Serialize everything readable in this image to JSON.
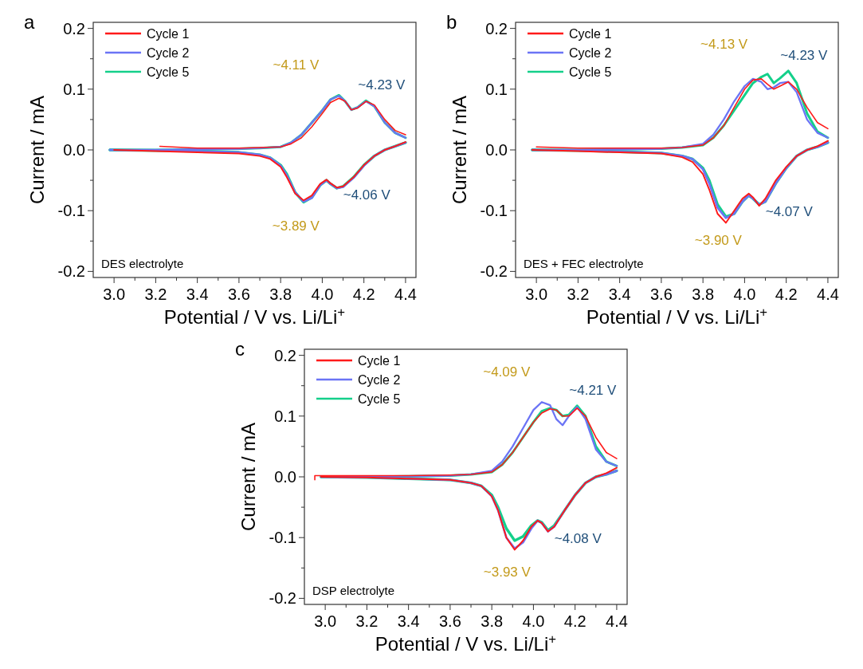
{
  "chart_data": [
    {
      "type": "line",
      "title": "a",
      "xlabel": "Potential / V vs. Li/Li$^{+}$",
      "ylabel": "Current / mA",
      "legend": "top left",
      "line_style": "solid",
      "xlim": [
        2.9,
        4.45
      ],
      "ylim": [
        -0.21,
        0.21
      ],
      "xticks": [
        {
          "value": 3.0,
          "label": "3.0"
        },
        {
          "value": 3.1,
          "label": null
        },
        3.2,
        {
          "value": 3.3,
          "label": null
        },
        3.4,
        {
          "value": 3.5,
          "label": null
        },
        3.6,
        {
          "value": 3.7,
          "label": null
        },
        3.8,
        {
          "value": 3.9,
          "label": null
        },
        {
          "value": 4.0,
          "label": "4.0"
        },
        {
          "value": 4.1,
          "label": null
        },
        4.2,
        {
          "value": 4.3,
          "label": null
        },
        4.4
      ],
      "yticks": [
        -0.2,
        {
          "value": -0.15,
          "label": null
        },
        -0.1,
        {
          "value": -0.05,
          "label": null
        },
        {
          "value": 0,
          "label": "0.0"
        },
        {
          "value": 0.05,
          "label": null
        },
        0.1,
        {
          "value": 0.15,
          "label": null
        },
        0.2
      ],
      "annotations": [
        {
          "text": "~4.11 V",
          "x": 4.08,
          "y": 0.09
        },
        {
          "text": "~4.23 V",
          "x": 4.21,
          "y": 0.081
        },
        {
          "text": "~3.89 V",
          "x": 3.91,
          "y": -0.086
        },
        {
          "text": "~4.06 V",
          "x": 4.07,
          "y": -0.063
        },
        "DES electrolyte"
      ],
      "series": [
        {
          "name": "Cycle 1",
          "color": "#ff1a1a",
          "x": [
            3.22,
            3.4,
            3.6,
            3.7,
            3.8,
            3.85,
            3.9,
            3.95,
            4.0,
            4.04,
            4.08,
            4.11,
            4.14,
            4.17,
            4.21,
            4.25,
            4.3,
            4.35,
            4.4
          ],
          "values": [
            0.006,
            0.003,
            0.003,
            0.004,
            0.005,
            0.01,
            0.02,
            0.038,
            0.06,
            0.078,
            0.085,
            0.08,
            0.066,
            0.069,
            0.08,
            0.074,
            0.05,
            0.032,
            0.025
          ]
        },
        {
          "color": "#ff1a1a",
          "x": [
            4.4,
            4.35,
            4.3,
            4.25,
            4.2,
            4.15,
            4.1,
            4.07,
            4.04,
            4.02,
            3.99,
            3.95,
            3.91,
            3.87,
            3.83,
            3.8,
            3.75,
            3.7,
            3.6,
            3.4,
            3.2,
            3.0
          ],
          "values": [
            0.013,
            0.006,
            0,
            -0.01,
            -0.025,
            -0.045,
            -0.06,
            -0.062,
            -0.055,
            -0.049,
            -0.056,
            -0.075,
            -0.083,
            -0.072,
            -0.045,
            -0.028,
            -0.015,
            -0.01,
            -0.006,
            -0.004,
            -0.002,
            0
          ]
        },
        {
          "name": "Cycle 2",
          "color": "#6b74f5",
          "x": [
            2.98,
            3.2,
            3.4,
            3.6,
            3.7,
            3.8,
            3.85,
            3.9,
            3.95,
            4.0,
            4.04,
            4.08,
            4.11,
            4.14,
            4.17,
            4.21,
            4.25,
            4.3,
            4.35,
            4.4
          ],
          "values": [
            0,
            0,
            0.001,
            0.002,
            0.003,
            0.005,
            0.012,
            0.025,
            0.045,
            0.065,
            0.083,
            0.089,
            0.08,
            0.066,
            0.07,
            0.08,
            0.072,
            0.045,
            0.028,
            0.02
          ]
        },
        {
          "color": "#6b74f5",
          "x": [
            4.4,
            4.35,
            4.3,
            4.25,
            4.2,
            4.15,
            4.1,
            4.07,
            4.04,
            4.02,
            3.99,
            3.95,
            3.91,
            3.87,
            3.83,
            3.8,
            3.75,
            3.7,
            3.6,
            3.4,
            3.2,
            2.98
          ],
          "values": [
            0.012,
            0.006,
            0,
            -0.01,
            -0.026,
            -0.046,
            -0.061,
            -0.063,
            -0.056,
            -0.05,
            -0.058,
            -0.079,
            -0.085,
            -0.07,
            -0.042,
            -0.026,
            -0.013,
            -0.008,
            -0.004,
            -0.002,
            -0.001,
            0
          ]
        },
        {
          "name": "Cycle 5",
          "color": "#14d08a",
          "x": [
            2.98,
            3.2,
            3.4,
            3.6,
            3.7,
            3.8,
            3.85,
            3.9,
            3.95,
            4.0,
            4.04,
            4.08,
            4.11,
            4.14,
            4.17,
            4.21,
            4.25,
            4.3,
            4.35,
            4.4
          ],
          "values": [
            0,
            0,
            0.001,
            0.002,
            0.003,
            0.005,
            0.012,
            0.025,
            0.045,
            0.065,
            0.083,
            0.09,
            0.08,
            0.066,
            0.07,
            0.081,
            0.072,
            0.045,
            0.028,
            0.02
          ]
        },
        {
          "color": "#14d08a",
          "x": [
            4.4,
            4.35,
            4.3,
            4.25,
            4.2,
            4.15,
            4.1,
            4.07,
            4.04,
            4.02,
            3.99,
            3.95,
            3.91,
            3.87,
            3.83,
            3.8,
            3.75,
            3.7,
            3.6,
            3.4,
            3.2,
            2.98
          ],
          "values": [
            0.012,
            0.006,
            0,
            -0.01,
            -0.025,
            -0.045,
            -0.06,
            -0.063,
            -0.056,
            -0.05,
            -0.058,
            -0.078,
            -0.086,
            -0.07,
            -0.04,
            -0.025,
            -0.013,
            -0.008,
            -0.004,
            -0.002,
            -0.001,
            0
          ]
        }
      ]
    },
    {
      "type": "line",
      "title": "b",
      "xlabel": "Potential / V vs. Li/Li$^{+}$",
      "ylabel": "Current / mA",
      "legend": "top left",
      "line_style": "solid",
      "xlim": [
        2.9,
        4.45
      ],
      "ylim": [
        -0.21,
        0.21
      ],
      "xticks": [
        {
          "value": 3.0,
          "label": "3.0"
        },
        {
          "value": 3.1,
          "label": null
        },
        3.2,
        {
          "value": 3.3,
          "label": null
        },
        3.4,
        {
          "value": 3.5,
          "label": null
        },
        3.6,
        {
          "value": 3.7,
          "label": null
        },
        3.8,
        {
          "value": 3.9,
          "label": null
        },
        {
          "value": 4.0,
          "label": "4.0"
        },
        {
          "value": 4.1,
          "label": null
        },
        4.2,
        {
          "value": 4.3,
          "label": null
        },
        4.4
      ],
      "yticks": [
        -0.2,
        {
          "value": -0.15,
          "label": null
        },
        -0.1,
        {
          "value": -0.05,
          "label": null
        },
        {
          "value": 0,
          "label": "0.0"
        },
        {
          "value": 0.05,
          "label": null
        },
        0.1,
        {
          "value": 0.15,
          "label": null
        },
        0.2
      ],
      "annotations": [
        {
          "text": "~4.13 V",
          "x": 4.11,
          "y": 0.125
        },
        {
          "text": "~4.23 V",
          "x": 4.21,
          "y": 0.13
        },
        {
          "text": "~3.90 V",
          "x": 3.91,
          "y": -0.11
        },
        {
          "text": "~4.07 V",
          "x": 4.07,
          "y": -0.09
        },
        "DES + FEC electrolyte"
      ],
      "series": [
        {
          "name": "Cycle 1",
          "color": "#ff1a1a",
          "x": [
            3.0,
            3.2,
            3.4,
            3.6,
            3.7,
            3.8,
            3.85,
            3.9,
            3.95,
            4.0,
            4.04,
            4.08,
            4.11,
            4.14,
            4.17,
            4.21,
            4.25,
            4.3,
            4.35,
            4.4
          ],
          "values": [
            0.005,
            0.003,
            0.003,
            0.003,
            0.004,
            0.008,
            0.02,
            0.04,
            0.07,
            0.1,
            0.115,
            0.117,
            0.108,
            0.1,
            0.105,
            0.112,
            0.1,
            0.07,
            0.045,
            0.035
          ]
        },
        {
          "color": "#ff1a1a",
          "x": [
            4.4,
            4.35,
            4.3,
            4.25,
            4.2,
            4.15,
            4.1,
            4.07,
            4.04,
            4.02,
            3.99,
            3.95,
            3.91,
            3.87,
            3.83,
            3.8,
            3.75,
            3.7,
            3.6,
            3.4,
            3.2,
            2.98
          ],
          "values": [
            0.015,
            0.006,
            0,
            -0.01,
            -0.028,
            -0.05,
            -0.08,
            -0.092,
            -0.078,
            -0.072,
            -0.08,
            -0.1,
            -0.12,
            -0.105,
            -0.065,
            -0.04,
            -0.02,
            -0.012,
            -0.006,
            -0.004,
            -0.002,
            0
          ]
        },
        {
          "name": "Cycle 2",
          "color": "#6b74f5",
          "x": [
            2.98,
            3.2,
            3.4,
            3.6,
            3.7,
            3.8,
            3.85,
            3.9,
            3.95,
            4.0,
            4.04,
            4.08,
            4.11,
            4.14,
            4.17,
            4.21,
            4.25,
            4.3,
            4.35,
            4.4
          ],
          "values": [
            0,
            0,
            0.001,
            0.002,
            0.004,
            0.01,
            0.025,
            0.05,
            0.08,
            0.105,
            0.117,
            0.112,
            0.1,
            0.103,
            0.11,
            0.112,
            0.095,
            0.05,
            0.028,
            0.02
          ]
        },
        {
          "color": "#6b74f5",
          "x": [
            4.4,
            4.35,
            4.3,
            4.25,
            4.2,
            4.15,
            4.1,
            4.07,
            4.04,
            4.02,
            3.99,
            3.95,
            3.91,
            3.87,
            3.83,
            3.8,
            3.75,
            3.7,
            3.6,
            3.4,
            3.2,
            2.98
          ],
          "values": [
            0.012,
            0.005,
            0,
            -0.01,
            -0.03,
            -0.055,
            -0.085,
            -0.09,
            -0.08,
            -0.075,
            -0.085,
            -0.105,
            -0.112,
            -0.095,
            -0.055,
            -0.032,
            -0.015,
            -0.01,
            -0.005,
            -0.003,
            -0.001,
            0
          ]
        },
        {
          "name": "Cycle 5",
          "color": "#14d08a",
          "x": [
            2.98,
            3.2,
            3.4,
            3.6,
            3.7,
            3.8,
            3.85,
            3.9,
            3.95,
            4.0,
            4.04,
            4.08,
            4.11,
            4.14,
            4.17,
            4.21,
            4.25,
            4.3,
            4.35,
            4.4
          ],
          "values": [
            0,
            0,
            0.001,
            0.002,
            0.004,
            0.008,
            0.02,
            0.04,
            0.065,
            0.09,
            0.11,
            0.12,
            0.125,
            0.11,
            0.118,
            0.13,
            0.11,
            0.06,
            0.03,
            0.02
          ]
        },
        {
          "color": "#14d08a",
          "x": [
            4.4,
            4.35,
            4.3,
            4.25,
            4.2,
            4.15,
            4.1,
            4.07,
            4.04,
            4.02,
            3.99,
            3.95,
            3.91,
            3.87,
            3.83,
            3.8,
            3.75,
            3.7,
            3.6,
            3.4,
            3.2,
            2.98
          ],
          "values": [
            0.012,
            0.005,
            0,
            -0.01,
            -0.03,
            -0.055,
            -0.085,
            -0.09,
            -0.08,
            -0.075,
            -0.085,
            -0.105,
            -0.11,
            -0.09,
            -0.05,
            -0.03,
            -0.015,
            -0.01,
            -0.005,
            -0.003,
            -0.001,
            0
          ]
        }
      ]
    },
    {
      "type": "line",
      "title": "c",
      "xlabel": "Potential / V vs. Li/Li$^{+}$",
      "ylabel": "Current / mA",
      "legend": "top left",
      "line_style": "solid",
      "xlim": [
        2.9,
        4.45
      ],
      "ylim": [
        -0.21,
        0.21
      ],
      "xticks": [
        {
          "value": 3.0,
          "label": "3.0"
        },
        {
          "value": 3.1,
          "label": null
        },
        3.2,
        {
          "value": 3.3,
          "label": null
        },
        3.4,
        {
          "value": 3.5,
          "label": null
        },
        3.6,
        {
          "value": 3.7,
          "label": null
        },
        3.8,
        {
          "value": 3.9,
          "label": null
        },
        {
          "value": 4.0,
          "label": "4.0"
        },
        {
          "value": 4.1,
          "label": null
        },
        4.2,
        {
          "value": 4.3,
          "label": null
        },
        4.4
      ],
      "yticks": [
        -0.2,
        {
          "value": -0.15,
          "label": null
        },
        -0.1,
        {
          "value": -0.05,
          "label": null
        },
        {
          "value": 0,
          "label": "0.0"
        },
        {
          "value": 0.05,
          "label": null
        },
        0.1,
        {
          "value": 0.15,
          "label": null
        },
        0.2
      ],
      "annotations": [
        {
          "text": "~4.09 V",
          "x": 4.08,
          "y": 0.123
        },
        {
          "text": "~4.21 V",
          "x": 4.21,
          "y": 0.117
        },
        {
          "text": "~3.93 V",
          "x": 3.91,
          "y": -0.118
        },
        {
          "text": "~4.08 V",
          "x": 4.07,
          "y": -0.09
        },
        "DSP electrolyte"
      ],
      "series": [
        {
          "name": "Cycle 1",
          "color": "#ff1a1a",
          "x": [
            2.95,
            2.95,
            3.2,
            3.4,
            3.6,
            3.7,
            3.8,
            3.85,
            3.9,
            3.95,
            4.0,
            4.04,
            4.08,
            4.11,
            4.14,
            4.17,
            4.21,
            4.25,
            4.3,
            4.35,
            4.4
          ],
          "values": [
            -0.005,
            0.002,
            0.002,
            0.002,
            0.003,
            0.004,
            0.008,
            0.02,
            0.04,
            0.065,
            0.09,
            0.105,
            0.112,
            0.11,
            0.1,
            0.1,
            0.113,
            0.1,
            0.065,
            0.04,
            0.03
          ]
        },
        {
          "color": "#ff1a1a",
          "x": [
            4.4,
            4.35,
            4.3,
            4.25,
            4.2,
            4.15,
            4.1,
            4.07,
            4.04,
            4.02,
            3.99,
            3.95,
            3.91,
            3.87,
            3.83,
            3.8,
            3.75,
            3.7,
            3.6,
            3.4,
            3.2,
            2.98
          ],
          "values": [
            0.015,
            0.006,
            0,
            -0.01,
            -0.03,
            -0.055,
            -0.082,
            -0.09,
            -0.076,
            -0.072,
            -0.082,
            -0.105,
            -0.12,
            -0.1,
            -0.055,
            -0.032,
            -0.015,
            -0.01,
            -0.005,
            -0.003,
            -0.001,
            0
          ]
        },
        {
          "name": "Cycle 2",
          "color": "#6b74f5",
          "x": [
            2.98,
            3.2,
            3.4,
            3.6,
            3.7,
            3.8,
            3.85,
            3.9,
            3.95,
            4.0,
            4.04,
            4.08,
            4.11,
            4.14,
            4.17,
            4.21,
            4.25,
            4.3,
            4.35,
            4.4
          ],
          "values": [
            0,
            0,
            0.001,
            0.002,
            0.004,
            0.01,
            0.025,
            0.05,
            0.08,
            0.11,
            0.123,
            0.118,
            0.095,
            0.085,
            0.1,
            0.115,
            0.095,
            0.045,
            0.025,
            0.018
          ]
        },
        {
          "color": "#6b74f5",
          "x": [
            4.4,
            4.35,
            4.3,
            4.25,
            4.2,
            4.15,
            4.1,
            4.07,
            4.04,
            4.02,
            3.99,
            3.95,
            3.91,
            3.87,
            3.83,
            3.8,
            3.75,
            3.7,
            3.6,
            3.4,
            3.2,
            2.98
          ],
          "values": [
            0.01,
            0.004,
            0,
            -0.01,
            -0.03,
            -0.055,
            -0.082,
            -0.09,
            -0.076,
            -0.072,
            -0.085,
            -0.108,
            -0.118,
            -0.1,
            -0.055,
            -0.032,
            -0.015,
            -0.01,
            -0.005,
            -0.003,
            -0.001,
            0
          ]
        },
        {
          "name": "Cycle 5",
          "color": "#14d08a",
          "x": [
            2.98,
            3.2,
            3.4,
            3.6,
            3.7,
            3.8,
            3.85,
            3.9,
            3.95,
            4.0,
            4.04,
            4.08,
            4.11,
            4.14,
            4.17,
            4.21,
            4.25,
            4.3,
            4.35,
            4.4
          ],
          "values": [
            0,
            0,
            0.001,
            0.002,
            0.004,
            0.008,
            0.02,
            0.04,
            0.065,
            0.09,
            0.108,
            0.113,
            0.11,
            0.1,
            0.102,
            0.117,
            0.1,
            0.05,
            0.025,
            0.018
          ]
        },
        {
          "color": "#14d08a",
          "x": [
            4.4,
            4.35,
            4.3,
            4.25,
            4.2,
            4.15,
            4.1,
            4.07,
            4.04,
            4.02,
            3.99,
            3.95,
            3.91,
            3.87,
            3.83,
            3.8,
            3.75,
            3.7,
            3.6,
            3.4,
            3.2,
            2.98
          ],
          "values": [
            0.01,
            0.004,
            0,
            -0.01,
            -0.03,
            -0.055,
            -0.08,
            -0.088,
            -0.075,
            -0.072,
            -0.08,
            -0.098,
            -0.105,
            -0.085,
            -0.05,
            -0.03,
            -0.015,
            -0.01,
            -0.005,
            -0.003,
            -0.001,
            0
          ]
        }
      ]
    }
  ]
}
